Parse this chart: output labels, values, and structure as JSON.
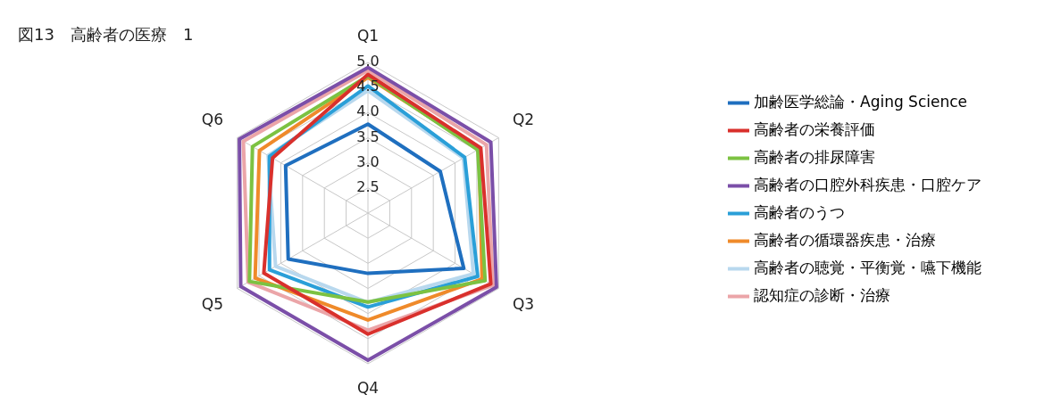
{
  "chart_data": {
    "type": "radar",
    "title": "図13　高齢者の医療　1",
    "categories": [
      "Q1",
      "Q2",
      "Q3",
      "Q4",
      "Q5",
      "Q6"
    ],
    "ylim": [
      2,
      5
    ],
    "yticks": [
      2.5,
      {
        "value": 3,
        "label": "3.0"
      },
      3.5,
      {
        "value": 4,
        "label": "4.0"
      },
      4.5,
      {
        "value": 5,
        "label": "5.0"
      }
    ],
    "grid": true,
    "legend": "right",
    "marker": "none",
    "series": [
      {
        "name": "加齢医学総論・Aging Science",
        "color": "#1f6fbf",
        "values": [
          3.77,
          3.66,
          4.2,
          3.2,
          3.83,
          3.89
        ]
      },
      {
        "name": "高齢者の栄養評価",
        "color": "#d9302c",
        "values": [
          4.76,
          4.59,
          4.82,
          4.41,
          4.39,
          4.19
        ]
      },
      {
        "name": "高齢者の排尿障害",
        "color": "#7cc242",
        "values": [
          4.73,
          4.52,
          4.69,
          3.77,
          4.72,
          4.65
        ]
      },
      {
        "name": "高齢者の口腔外科疾患・口腔ケア",
        "color": "#7b4fa8",
        "values": [
          4.9,
          4.82,
          4.95,
          4.93,
          4.92,
          4.95
        ]
      },
      {
        "name": "高齢者のうつ",
        "color": "#2a9fd8",
        "values": [
          4.53,
          4.22,
          4.52,
          3.87,
          4.26,
          4.26
        ]
      },
      {
        "name": "高齢者の循環器疾患・治療",
        "color": "#ef8a2a",
        "values": [
          4.7,
          4.55,
          4.62,
          4.13,
          4.59,
          4.49
        ]
      },
      {
        "name": "高齢者の聴覚・平衡覚・嚥下機能",
        "color": "#b8d8ee",
        "values": [
          4.44,
          4.19,
          4.42,
          3.78,
          4.12,
          4.29
        ]
      },
      {
        "name": "認知症の診断・治療",
        "color": "#eba5a8",
        "values": [
          4.84,
          4.72,
          4.87,
          4.33,
          4.75,
          4.86
        ]
      }
    ]
  }
}
